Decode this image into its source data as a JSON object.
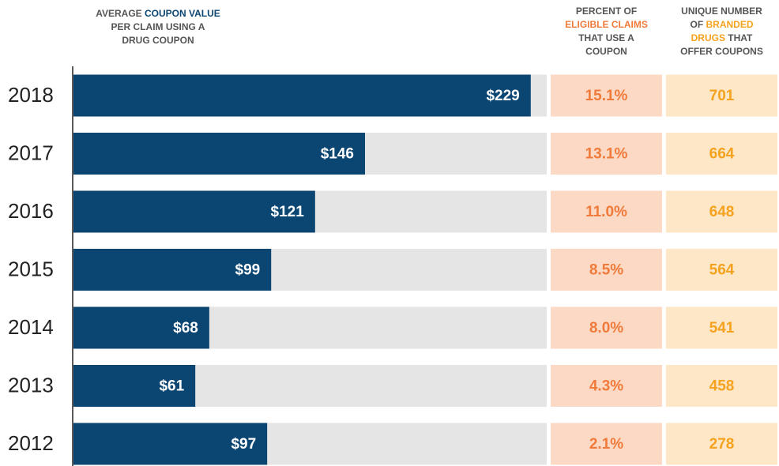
{
  "chart_data": {
    "type": "bar",
    "orientation": "horizontal",
    "categories": [
      "2018",
      "2017",
      "2016",
      "2015",
      "2014",
      "2013",
      "2012"
    ],
    "values": [
      229,
      146,
      121,
      99,
      68,
      61,
      97
    ],
    "value_labels": [
      "$229",
      "$146",
      "$121",
      "$99",
      "$68",
      "$61",
      "$97"
    ],
    "color": "#0b4673",
    "track_color": "#e5e5e5",
    "xlim": [
      0,
      237
    ],
    "header": [
      [
        "AVERAGE ",
        {
          "text": "COUPON VALUE",
          "color": "#0b4673"
        }
      ],
      [
        "PER CLAIM USING A"
      ],
      [
        "DRUG COUPON"
      ]
    ],
    "table_columns": [
      {
        "header": [
          [
            "PERCENT OF"
          ],
          [
            {
              "text": "ELIGIBLE CLAIMS",
              "color": "#f07a3a"
            }
          ],
          [
            "THAT USE A"
          ],
          [
            "COUPON"
          ]
        ],
        "values": [
          15.1,
          13.1,
          11.0,
          8.5,
          8.0,
          4.3,
          2.1
        ],
        "value_labels": [
          "15.1%",
          "13.1%",
          "11.0%",
          "8.5%",
          "8.0%",
          "4.3%",
          "2.1%"
        ],
        "color": "#f07a3a",
        "background": "#fcd9c4"
      },
      {
        "header": [
          [
            "UNIQUE NUMBER"
          ],
          [
            "OF ",
            {
              "text": "BRANDED",
              "color": "#f5a21e"
            }
          ],
          [
            {
              "text": "DRUGS",
              "color": "#f5a21e"
            },
            " THAT"
          ],
          [
            "OFFER COUPONS"
          ]
        ],
        "values": [
          701,
          664,
          648,
          564,
          541,
          458,
          278
        ],
        "color": "#f5a21e",
        "background": "#fde7c6"
      }
    ]
  }
}
